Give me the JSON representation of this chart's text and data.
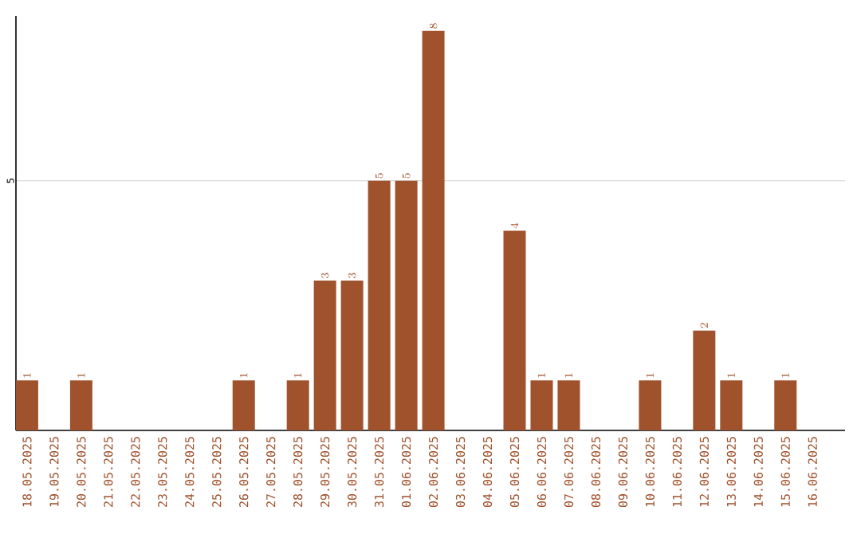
{
  "chart_data": {
    "type": "bar",
    "categories": [
      "18.05.2025",
      "19.05.2025",
      "20.05.2025",
      "21.05.2025",
      "22.05.2025",
      "23.05.2025",
      "24.05.2025",
      "25.05.2025",
      "26.05.2025",
      "27.05.2025",
      "28.05.2025",
      "29.05.2025",
      "30.05.2025",
      "31.05.2025",
      "01.06.2025",
      "02.06.2025",
      "03.06.2025",
      "04.06.2025",
      "05.06.2025",
      "06.06.2025",
      "07.06.2025",
      "08.06.2025",
      "09.06.2025",
      "10.06.2025",
      "11.06.2025",
      "12.06.2025",
      "13.06.2025",
      "14.06.2025",
      "15.06.2025",
      "16.06.2025"
    ],
    "values": [
      1,
      null,
      1,
      null,
      null,
      null,
      null,
      null,
      1,
      null,
      1,
      3,
      3,
      5,
      5,
      8,
      null,
      null,
      4,
      1,
      1,
      null,
      null,
      1,
      null,
      2,
      1,
      null,
      1,
      null
    ],
    "color": "#a0522d",
    "ylim": [
      0,
      8.3
    ],
    "yticks": [
      5
    ],
    "grid": "y",
    "data_labels": true
  }
}
